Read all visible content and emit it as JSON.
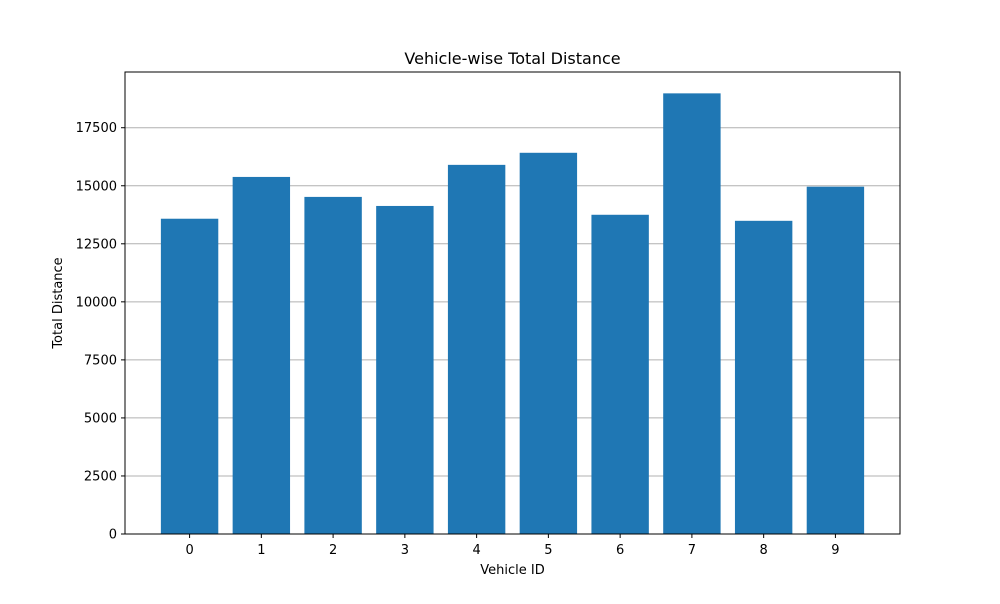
{
  "chart_data": {
    "type": "bar",
    "title": "Vehicle-wise Total Distance",
    "xlabel": "Vehicle ID",
    "ylabel": "Total Distance",
    "categories": [
      "0",
      "1",
      "2",
      "3",
      "4",
      "5",
      "6",
      "7",
      "8",
      "9"
    ],
    "values": [
      13580,
      15380,
      14520,
      14130,
      15900,
      16420,
      13750,
      18980,
      13490,
      14960
    ],
    "ylim": [
      0,
      19900
    ],
    "yticks": [
      0,
      2500,
      5000,
      7500,
      10000,
      12500,
      15000,
      17500
    ],
    "ytick_labels": [
      "0",
      "2500",
      "5000",
      "7500",
      "10000",
      "12500",
      "15000",
      "17500"
    ],
    "grid": "horizontal",
    "bar_color": "#1f77b4",
    "grid_color": "#b0b0b0"
  }
}
